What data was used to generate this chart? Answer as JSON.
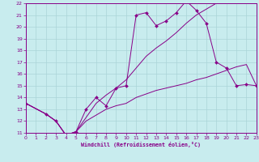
{
  "xlabel": "Windchill (Refroidissement éolien,°C)",
  "background_color": "#c8ecee",
  "line_color": "#880088",
  "grid_color": "#aad4d8",
  "xlim": [
    0,
    23
  ],
  "ylim": [
    11,
    22
  ],
  "xticks": [
    0,
    1,
    2,
    3,
    4,
    5,
    6,
    7,
    8,
    9,
    10,
    11,
    12,
    13,
    14,
    15,
    16,
    17,
    18,
    19,
    20,
    21,
    22,
    23
  ],
  "yticks": [
    11,
    12,
    13,
    14,
    15,
    16,
    17,
    18,
    19,
    20,
    21,
    22
  ],
  "line1_x": [
    0,
    2,
    3,
    4,
    5,
    6,
    7,
    8,
    9,
    10,
    11,
    12,
    13,
    14,
    15,
    16,
    17,
    18,
    19,
    20,
    21,
    22,
    23
  ],
  "line1_y": [
    13.5,
    12.6,
    12.0,
    10.8,
    11.1,
    13.0,
    14.0,
    13.3,
    14.8,
    15.0,
    21.0,
    21.2,
    20.1,
    20.5,
    21.2,
    22.2,
    21.4,
    20.3,
    17.0,
    16.5,
    15.0,
    15.1,
    15.0
  ],
  "line2_x": [
    0,
    2,
    3,
    4,
    5,
    6,
    7,
    8,
    9,
    10,
    11,
    12,
    13,
    14,
    15,
    16,
    17,
    18,
    19,
    20,
    21,
    22,
    23
  ],
  "line2_y": [
    13.5,
    12.6,
    12.0,
    10.8,
    11.1,
    12.3,
    13.5,
    14.2,
    14.8,
    15.5,
    16.5,
    17.5,
    18.2,
    18.8,
    19.5,
    20.3,
    21.0,
    21.5,
    22.0,
    22.0,
    22.0,
    22.0,
    22.0
  ],
  "line3_x": [
    0,
    2,
    3,
    4,
    5,
    6,
    7,
    8,
    9,
    10,
    11,
    12,
    13,
    14,
    15,
    16,
    17,
    18,
    19,
    20,
    21,
    22,
    23
  ],
  "line3_y": [
    13.5,
    12.6,
    12.0,
    10.8,
    11.1,
    12.0,
    12.5,
    13.0,
    13.3,
    13.5,
    14.0,
    14.3,
    14.6,
    14.8,
    15.0,
    15.2,
    15.5,
    15.7,
    16.0,
    16.3,
    16.6,
    16.8,
    15.0
  ]
}
